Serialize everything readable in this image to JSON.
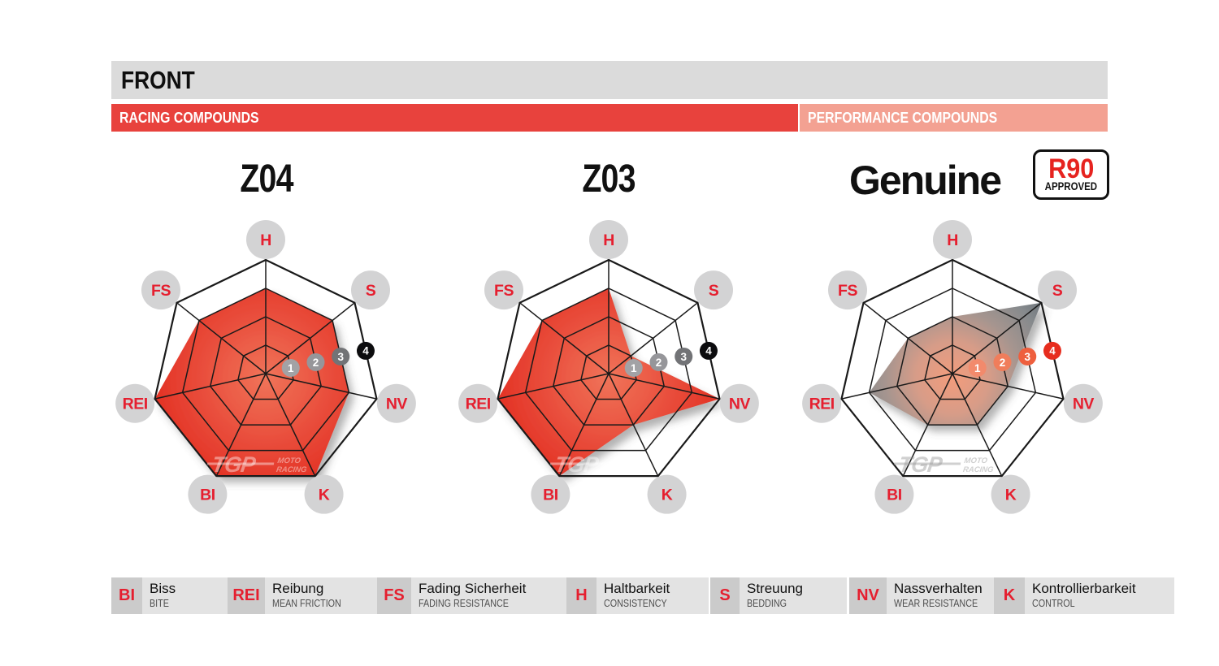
{
  "header": {
    "title": "FRONT",
    "bar_color": "#dbdbdb"
  },
  "bands": {
    "racing": {
      "label": "RACING COMPOUNDS",
      "color": "#e8423d"
    },
    "performance": {
      "label": "PERFORMANCE COMPOUNDS",
      "color": "#f3a192"
    }
  },
  "ui": {
    "axis_circle_color": "#d3d3d4",
    "axis_text_color": "#e51f2f",
    "grid_color": "#1a1a1a",
    "marker_text_color": "#ffffff"
  },
  "watermark": {
    "tgp": "TGP",
    "moto": "MOTO",
    "racing": "RACING"
  },
  "chart_data": [
    {
      "type": "radar",
      "title": "Z04",
      "group": "RACING COMPOUNDS",
      "axes": [
        "H",
        "S",
        "NV",
        "K",
        "BI",
        "REI",
        "FS"
      ],
      "values": [
        3,
        3,
        3,
        4,
        4,
        4,
        3
      ],
      "scale": {
        "min": 0,
        "max": 4,
        "ring_labels": [
          "1",
          "2",
          "3",
          "4"
        ]
      },
      "marker_colors": [
        "#a2a2a5",
        "#96969a",
        "#727376",
        "#0c0c0e"
      ],
      "fill_stops": [
        [
          0,
          "#f07459"
        ],
        [
          0.45,
          "#ea5340"
        ],
        [
          1,
          "#e22c20"
        ]
      ],
      "watermark_color": "rgba(255,255,255,0.42)"
    },
    {
      "type": "radar",
      "title": "Z03",
      "group": "RACING COMPOUNDS",
      "axes": [
        "H",
        "S",
        "NV",
        "K",
        "BI",
        "REI",
        "FS"
      ],
      "values": [
        3,
        1,
        4,
        2,
        4,
        4,
        3
      ],
      "scale": {
        "min": 0,
        "max": 4,
        "ring_labels": [
          "1",
          "2",
          "3",
          "4"
        ]
      },
      "marker_colors": [
        "#a2a2a5",
        "#96969a",
        "#727376",
        "#0c0c0e"
      ],
      "fill_stops": [
        [
          0,
          "#f07459"
        ],
        [
          0.45,
          "#ea5340"
        ],
        [
          1,
          "#e22c20"
        ]
      ],
      "watermark_color": "rgba(255,255,255,0.42)"
    },
    {
      "type": "radar",
      "title": "Genuine",
      "group": "PERFORMANCE COMPOUNDS",
      "badge": {
        "line1": "R90",
        "line2": "APPROVED"
      },
      "axes": [
        "H",
        "S",
        "NV",
        "K",
        "BI",
        "REI",
        "FS"
      ],
      "values": [
        2,
        4,
        2,
        2,
        2,
        3,
        2
      ],
      "scale": {
        "min": 0,
        "max": 4,
        "ring_labels": [
          "1",
          "2",
          "3",
          "4"
        ]
      },
      "marker_colors": [
        "#f28a6c",
        "#f07d5b",
        "#ee5f3e",
        "#e72d1e"
      ],
      "fill_stops": [
        [
          0,
          "#f29c7c"
        ],
        [
          0.3,
          "#d79c88"
        ],
        [
          0.55,
          "#a6958f"
        ],
        [
          0.8,
          "#868a8d"
        ],
        [
          1,
          "#687077"
        ]
      ],
      "watermark_color": "rgba(150,150,150,0.45)"
    }
  ],
  "legend": {
    "items": [
      {
        "abbr": "BI",
        "de": "Biss",
        "en": "BITE"
      },
      {
        "abbr": "REI",
        "de": "Reibung",
        "en": "MEAN FRICTION"
      },
      {
        "abbr": "FS",
        "de": "Fading Sicherheit",
        "en": "FADING RESISTANCE"
      },
      {
        "abbr": "H",
        "de": "Haltbarkeit",
        "en": "CONSISTENCY"
      },
      {
        "abbr": "S",
        "de": "Streuung",
        "en": "BEDDING"
      },
      {
        "abbr": "NV",
        "de": "Nassverhalten",
        "en": "WEAR RESISTANCE"
      },
      {
        "abbr": "K",
        "de": "Kontrollierbarkeit",
        "en": "CONTROL"
      }
    ]
  }
}
